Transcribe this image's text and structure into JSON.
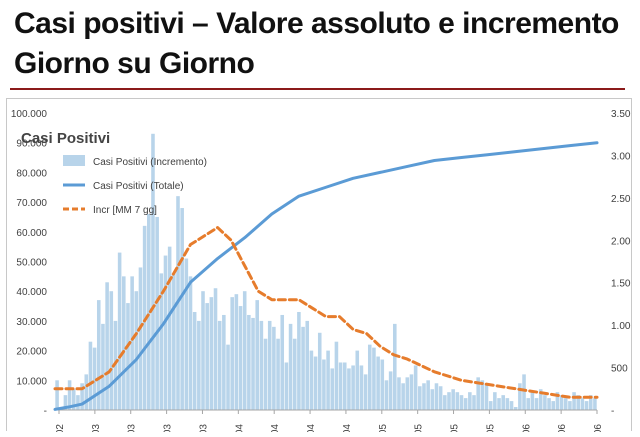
{
  "header": {
    "title_line1": "Casi positivi – Valore assoluto e incremento",
    "title_line2": "Giorno su Giorno",
    "rule_color": "#8b1a1a"
  },
  "chart_data": {
    "type": "bar",
    "title": "Casi Positivi",
    "legend_position": "top-left",
    "grid": false,
    "y_left": {
      "ylim": [
        0,
        100000
      ],
      "ticks": [
        "100.000",
        "90.000",
        "80.000",
        "70.000",
        "60.000",
        "50.000",
        "40.000",
        "30.000",
        "20.000",
        "10.000",
        "-"
      ]
    },
    "y_right": {
      "ylim": [
        0,
        3500
      ],
      "ticks": [
        "3.500",
        "3.000",
        "2.500",
        "2.000",
        "1.500",
        "1.000",
        "500",
        "-"
      ]
    },
    "x_tick_labels": [
      "02",
      "03",
      "03",
      "03",
      "03",
      "04",
      "04",
      "04",
      "04",
      "05",
      "05",
      "05",
      "05",
      "06",
      "06",
      "06"
    ],
    "series": [
      {
        "name": "Casi Positivi (Incremento)",
        "kind": "bar",
        "axis": "left",
        "color": "#b8d4ea",
        "values": [
          10000,
          1000,
          5000,
          10000,
          7000,
          5000,
          9000,
          12000,
          23000,
          21000,
          37000,
          29000,
          43000,
          40000,
          30000,
          53000,
          45000,
          36000,
          45000,
          40000,
          48000,
          62000,
          66000,
          93000,
          65000,
          46000,
          52000,
          55000,
          46000,
          72000,
          68000,
          51000,
          45000,
          33000,
          30000,
          40000,
          36000,
          38000,
          41000,
          30000,
          32000,
          22000,
          38000,
          39000,
          35000,
          40000,
          32000,
          31000,
          37000,
          30000,
          24000,
          30000,
          28000,
          24000,
          32000,
          16000,
          29000,
          24000,
          33000,
          28000,
          30000,
          20000,
          18000,
          26000,
          17000,
          20000,
          14000,
          23000,
          16000,
          16000,
          14000,
          15000,
          20000,
          15000,
          12000,
          22000,
          21000,
          18000,
          17000,
          10000,
          13000,
          29000,
          11000,
          9000,
          11000,
          12000,
          15000,
          8000,
          9000,
          10000,
          7000,
          9000,
          8000,
          5000,
          6000,
          7000,
          6000,
          5000,
          4000,
          6000,
          5000,
          11000,
          10000,
          9000,
          3000,
          6000,
          4000,
          5000,
          4000,
          3000,
          1000,
          9000,
          12000,
          4000,
          6000,
          4000,
          7000,
          5000,
          4000,
          3000,
          6000,
          5000,
          4000,
          3000,
          6000,
          5000,
          4000,
          3000,
          5000,
          4000
        ]
      },
      {
        "name": "Casi Positivi (Totale)",
        "kind": "line",
        "axis": "left",
        "color": "#5b9bd5",
        "points": [
          [
            0,
            200
          ],
          [
            5,
            1000
          ],
          [
            10,
            2000
          ],
          [
            20,
            8000
          ],
          [
            30,
            17000
          ],
          [
            40,
            29000
          ],
          [
            50,
            43000
          ],
          [
            60,
            51000
          ],
          [
            70,
            58000
          ],
          [
            80,
            66000
          ],
          [
            90,
            72000
          ],
          [
            100,
            75000
          ],
          [
            110,
            78000
          ],
          [
            120,
            80000
          ],
          [
            130,
            82000
          ],
          [
            140,
            84000
          ],
          [
            150,
            85000
          ],
          [
            160,
            86000
          ],
          [
            170,
            87000
          ],
          [
            180,
            88000
          ],
          [
            190,
            89000
          ],
          [
            200,
            90000
          ]
        ]
      },
      {
        "name": "Incr [MM 7 gg]",
        "kind": "line",
        "axis": "right",
        "color": "#e67c2c",
        "style": "dashed",
        "points": [
          [
            0,
            250
          ],
          [
            10,
            250
          ],
          [
            20,
            450
          ],
          [
            30,
            900
          ],
          [
            40,
            1400
          ],
          [
            50,
            1950
          ],
          [
            60,
            2150
          ],
          [
            65,
            2000
          ],
          [
            70,
            1700
          ],
          [
            75,
            1400
          ],
          [
            80,
            1300
          ],
          [
            90,
            1300
          ],
          [
            95,
            1200
          ],
          [
            100,
            1100
          ],
          [
            105,
            1100
          ],
          [
            110,
            950
          ],
          [
            115,
            900
          ],
          [
            120,
            750
          ],
          [
            125,
            650
          ],
          [
            130,
            600
          ],
          [
            140,
            450
          ],
          [
            150,
            350
          ],
          [
            160,
            300
          ],
          [
            170,
            250
          ],
          [
            180,
            200
          ],
          [
            190,
            150
          ],
          [
            200,
            150
          ]
        ]
      }
    ]
  }
}
